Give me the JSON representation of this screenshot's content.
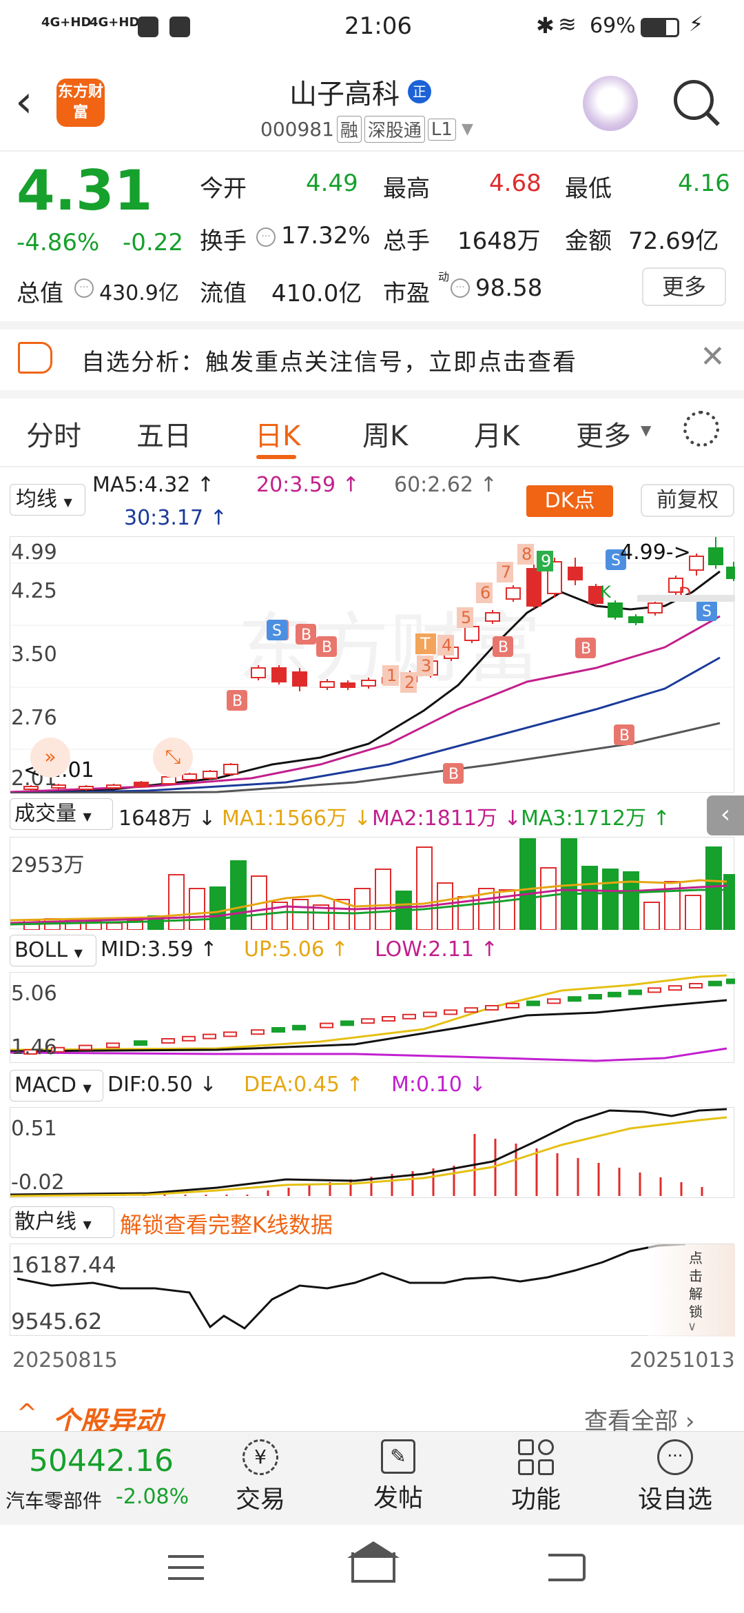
{
  "status_bar": {
    "network1": "4G+HD",
    "network2": "4G+HD",
    "time": "21:06",
    "battery": "69%"
  },
  "header": {
    "logo": "东方财富",
    "title": "山子高科",
    "title_badge": "正",
    "code": "000981",
    "tags": [
      "融",
      "深股通",
      "L1"
    ]
  },
  "quote": {
    "price": "4.31",
    "change_pct": "-4.86%",
    "change": "-0.22",
    "open_label": "今开",
    "open": "4.49",
    "high_label": "最高",
    "high": "4.68",
    "low_label": "最低",
    "low": "4.16",
    "turnover_label": "换手",
    "turnover": "17.32%",
    "volume_label": "总手",
    "volume": "1648万",
    "amount_label": "金额",
    "amount": "72.69亿",
    "mktcap_label": "总值",
    "mktcap": "430.9亿",
    "float_label": "流值",
    "float": "410.0亿",
    "pe_label": "市盈",
    "pe_sup": "动",
    "pe": "98.58",
    "more": "更多"
  },
  "notice": {
    "text": "自选分析：触发重点关注信号，立即点击查看"
  },
  "tabs": [
    "分时",
    "五日",
    "日K",
    "周K",
    "月K",
    "更多"
  ],
  "kline": {
    "ma_selector": "均线",
    "ma5": "MA5:4.32 ↑",
    "ma20": "20:3.59 ↑",
    "ma60": "60:2.62 ↑",
    "ma30": "30:3.17 ↑",
    "dk": "DK点",
    "adjust": "前复权",
    "y_ticks": [
      "4.99",
      "4.25",
      "3.50",
      "2.76",
      "2.01"
    ],
    "max_label": "4.99->",
    "min_label": "<-2.01"
  },
  "volume": {
    "selector": "成交量",
    "current": "1648万 ↓",
    "ma1": "MA1:1566万 ↓",
    "ma2": "MA2:1811万 ↓",
    "ma3": "MA3:1712万 ↑",
    "y_tick": "2953万"
  },
  "boll": {
    "selector": "BOLL",
    "mid": "MID:3.59 ↑",
    "up": "UP:5.06 ↑",
    "low": "LOW:2.11 ↑",
    "y_top": "5.06",
    "y_bottom": "1.46"
  },
  "macd": {
    "selector": "MACD",
    "dif": "DIF:0.50 ↓",
    "dea": "DEA:0.45 ↑",
    "m": "M:0.10 ↓",
    "y_top": "0.51",
    "y_bottom": "-0.02"
  },
  "retail": {
    "selector": "散户线",
    "unlock": "解锁查看完整K线数据",
    "y_top": "16187.44",
    "y_bottom": "9545.62",
    "side_unlock": "点击解锁"
  },
  "dates": {
    "start": "20250815",
    "end": "20251013"
  },
  "movement": {
    "title": "个股异动",
    "view_all": "查看全部"
  },
  "bottom": {
    "index_value": "50442.16",
    "index_name": "汽车零部件",
    "index_change": "-2.08%",
    "trade": "交易",
    "post": "发帖",
    "func": "功能",
    "watch": "设自选"
  },
  "colors": {
    "up": "#e02b2b",
    "down": "#16a02c",
    "accent": "#f06414"
  }
}
